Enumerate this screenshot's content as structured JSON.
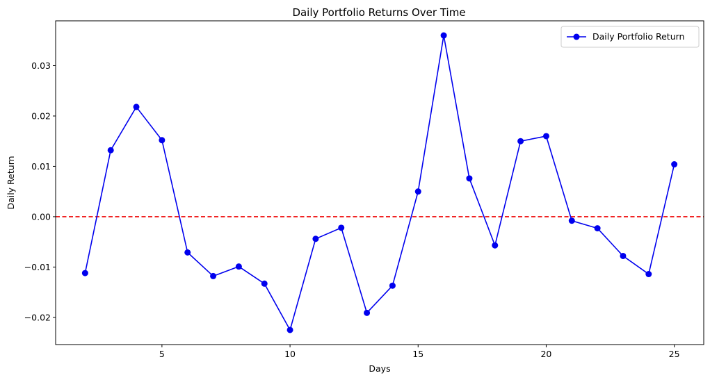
{
  "chart_data": {
    "type": "line",
    "title": "Daily Portfolio Returns Over Time",
    "xlabel": "Days",
    "ylabel": "Daily Return",
    "xlim": [
      0.85,
      26.15
    ],
    "ylim": [
      -0.0254,
      0.0389
    ],
    "xticks": [
      5,
      10,
      15,
      20,
      25
    ],
    "yticks": [
      -0.02,
      -0.01,
      0.0,
      0.01,
      0.02,
      0.03
    ],
    "ytick_labels": [
      "−0.02",
      "−0.01",
      "0.00",
      "0.01",
      "0.02",
      "0.03"
    ],
    "grid": false,
    "legend": {
      "position": "top-right",
      "entries": [
        "Daily Portfolio Return"
      ]
    },
    "reference_line": {
      "y": 0.0,
      "style": "dashed",
      "color": "#ee0000"
    },
    "series": [
      {
        "name": "Daily Portfolio Return",
        "color": "#0000ee",
        "marker": "circle",
        "x": [
          2,
          3,
          4,
          5,
          6,
          7,
          8,
          9,
          10,
          11,
          12,
          13,
          14,
          15,
          16,
          17,
          18,
          19,
          20,
          21,
          22,
          23,
          24,
          25
        ],
        "y": [
          -0.0112,
          0.0132,
          0.0218,
          0.0152,
          -0.0071,
          -0.0118,
          -0.0099,
          -0.0133,
          -0.0225,
          -0.0044,
          -0.0022,
          -0.0191,
          -0.0137,
          0.005,
          0.036,
          0.0076,
          -0.0057,
          0.015,
          0.016,
          -0.0008,
          -0.0023,
          -0.0078,
          -0.0114,
          0.0104
        ]
      }
    ]
  }
}
